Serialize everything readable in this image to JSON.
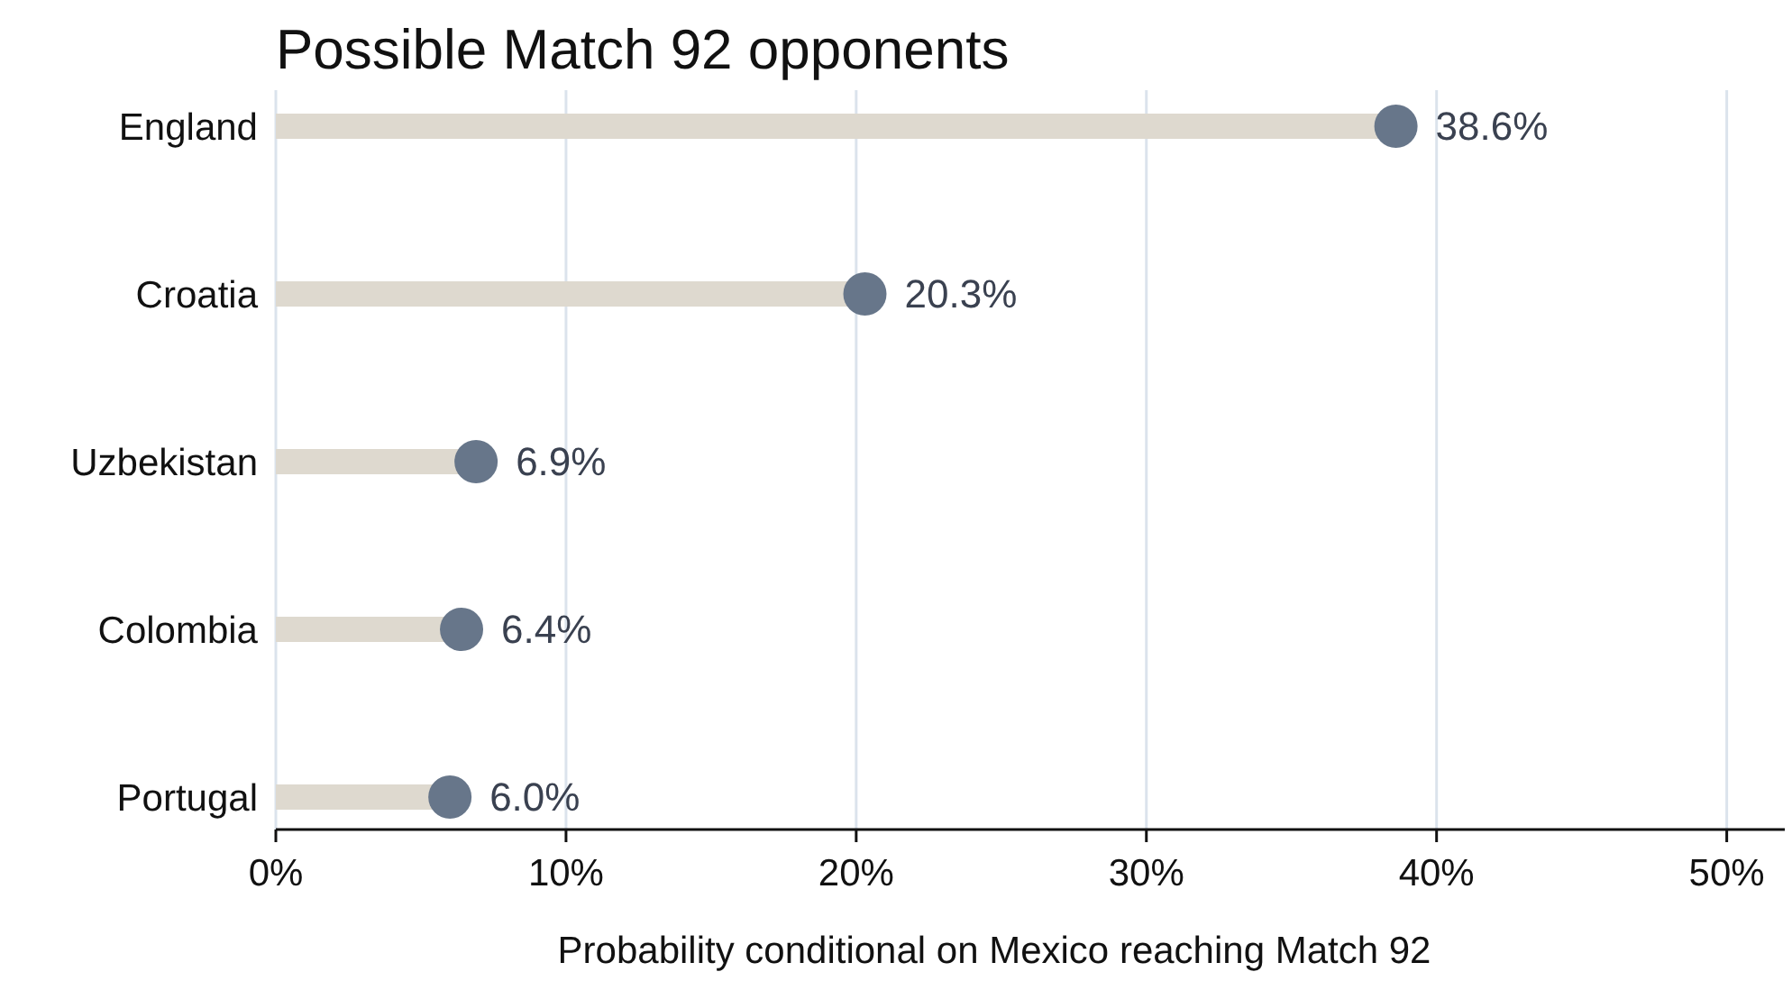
{
  "chart_data": {
    "type": "lollipop",
    "orientation": "horizontal",
    "title": "Possible Match 92 opponents",
    "xlabel": "Probability conditional on Mexico reaching Match 92",
    "categories": [
      "England",
      "Croatia",
      "Uzbekistan",
      "Colombia",
      "Portugal"
    ],
    "series": [
      {
        "color": "#67768a",
        "values": [
          38.6,
          20.3,
          6.9,
          6.4,
          6.0
        ],
        "value_labels": [
          "38.6%",
          "20.3%",
          "6.9%",
          "6.4%",
          "6.0%"
        ]
      }
    ],
    "xlim": [
      0,
      52
    ],
    "xticks": [
      {
        "value": 0,
        "label": "0%"
      },
      {
        "value": 10,
        "label": "10%"
      },
      {
        "value": 20,
        "label": "20%"
      },
      {
        "value": 30,
        "label": "30%"
      },
      {
        "value": 40,
        "label": "40%"
      },
      {
        "value": 50,
        "label": "50%"
      }
    ],
    "grid": "x",
    "marker": "circle"
  }
}
